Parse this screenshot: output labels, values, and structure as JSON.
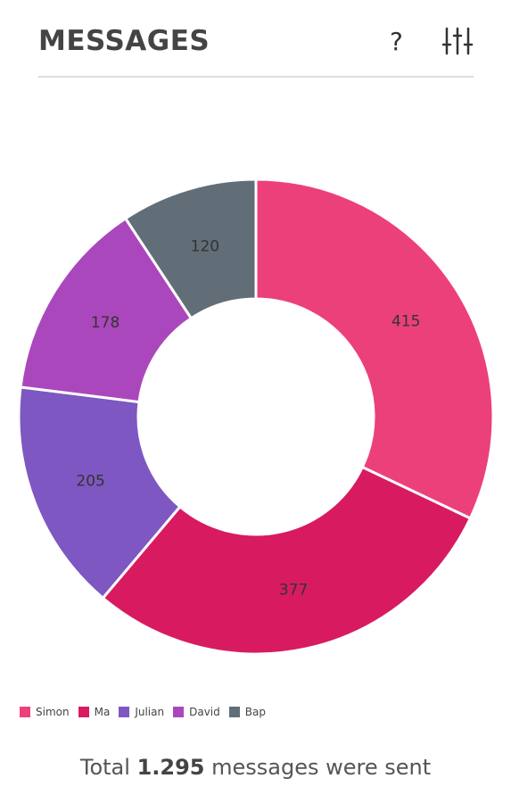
{
  "header": {
    "title": "MESSAGES",
    "help_icon": "?"
  },
  "chart_data": {
    "type": "donut",
    "categories": [
      "Simon",
      "Ma",
      "Julian",
      "David",
      "Bap"
    ],
    "values": [
      415,
      377,
      205,
      178,
      120
    ],
    "colors": [
      "#ec407a",
      "#d81b60",
      "#7e57c2",
      "#ab47bc",
      "#616e78"
    ]
  },
  "footer": {
    "prefix": "Total",
    "total": "1.295",
    "suffix": "messages were sent"
  }
}
